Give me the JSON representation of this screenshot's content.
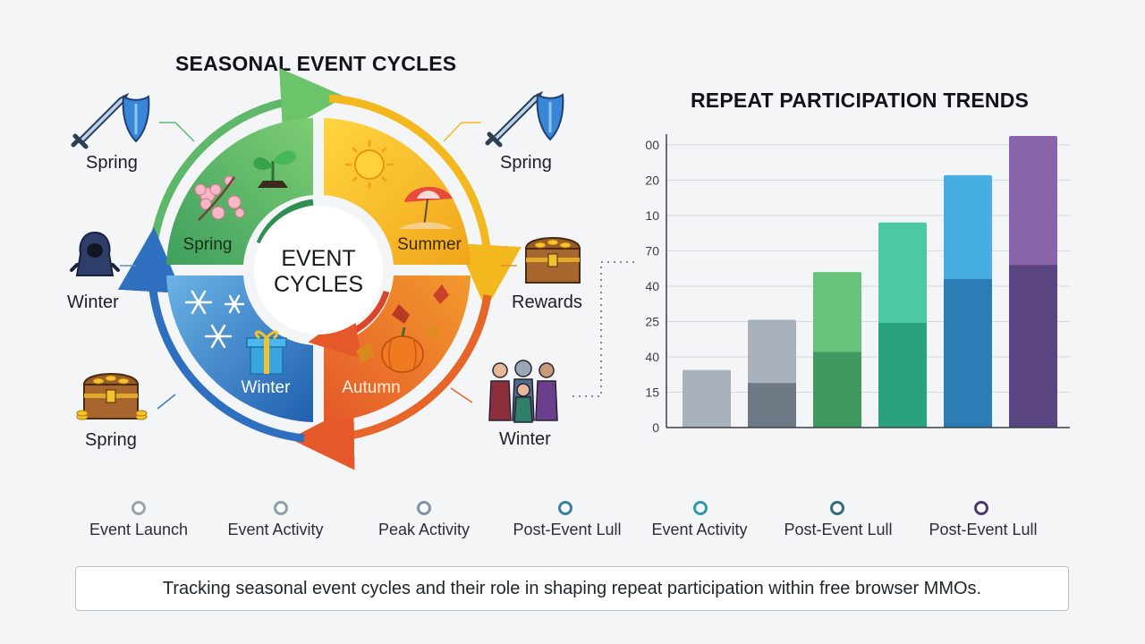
{
  "cycle": {
    "title": "SEASONAL EVENT CYCLES",
    "center_label": [
      "EVENT",
      "CYCLES"
    ],
    "segments": [
      {
        "name": "Spring",
        "color": "#4caf6a",
        "icon": "seedling-blossom-icon"
      },
      {
        "name": "Summer",
        "color": "#f2b81d",
        "icon": "sun-umbrella-icon"
      },
      {
        "name": "Autumn",
        "color": "#ee7a26",
        "icon": "leaves-pumpkin-icon"
      },
      {
        "name": "Winter",
        "color": "#2f7bc4",
        "icon": "snowflake-gift-icon"
      }
    ],
    "outer_labels": {
      "top_left": {
        "text": "Spring",
        "icon": "sword-shield-icon"
      },
      "mid_left": {
        "text": "Winter",
        "icon": "hooded-figure-icon"
      },
      "bottom_left": {
        "text": "Spring",
        "icon": "treasure-chest-icon"
      },
      "top_right": {
        "text": "Spring",
        "icon": "sword-shield-icon"
      },
      "mid_right": {
        "text": "Rewards",
        "icon": "treasure-chest-icon"
      },
      "bottom_right": {
        "text": "Winter",
        "icon": "party-group-icon"
      }
    }
  },
  "trends": {
    "title": "REPEAT PARTICIPATION TRENDS"
  },
  "chart_data": {
    "type": "bar",
    "title": "REPEAT PARTICIPATION TRENDS",
    "xlabel": "",
    "ylabel": "",
    "tick_labels": [
      "0",
      "15",
      "40",
      "25",
      "40",
      "70",
      "10",
      "20",
      "00"
    ],
    "tick_levels": [
      0,
      1,
      2,
      3,
      4,
      5,
      6,
      7,
      8
    ],
    "ylim": [
      0,
      8.3
    ],
    "grid": true,
    "legend": "none",
    "bars": [
      {
        "total": 1.63,
        "lower": 0,
        "upper_color": "#a9b2bb",
        "lower_color": "#8f99a3"
      },
      {
        "total": 3.05,
        "lower": 1.26,
        "upper_color": "#a9b2bb",
        "lower_color": "#6e7a86"
      },
      {
        "total": 4.4,
        "lower": 2.14,
        "upper_color": "#68c47b",
        "lower_color": "#3e9a5e"
      },
      {
        "total": 5.8,
        "lower": 2.96,
        "upper_color": "#4cc9a2",
        "lower_color": "#2aa27d"
      },
      {
        "total": 7.14,
        "lower": 4.2,
        "upper_color": "#46aee0",
        "lower_color": "#2c7db6"
      },
      {
        "total": 8.25,
        "lower": 4.6,
        "upper_color": "#8a64aa",
        "lower_color": "#5a4482"
      }
    ]
  },
  "timeline": {
    "points": [
      {
        "label": "Event Launch",
        "color": "#9aa4ad"
      },
      {
        "label": "Event Activity",
        "color": "#8fa0ac"
      },
      {
        "label": "Peak Activity",
        "color": "#7f95a6"
      },
      {
        "label": "Post-Event Lull",
        "color": "#3c7f9a"
      },
      {
        "label": "Event Activity",
        "color": "#2f9aa8"
      },
      {
        "label": "Post-Event Lull",
        "color": "#2e6f7a"
      },
      {
        "label": "Post-Event Lull",
        "color": "#4b3a74"
      }
    ]
  },
  "caption": "Tracking seasonal event cycles and their role in shaping repeat participation within free browser MMOs."
}
